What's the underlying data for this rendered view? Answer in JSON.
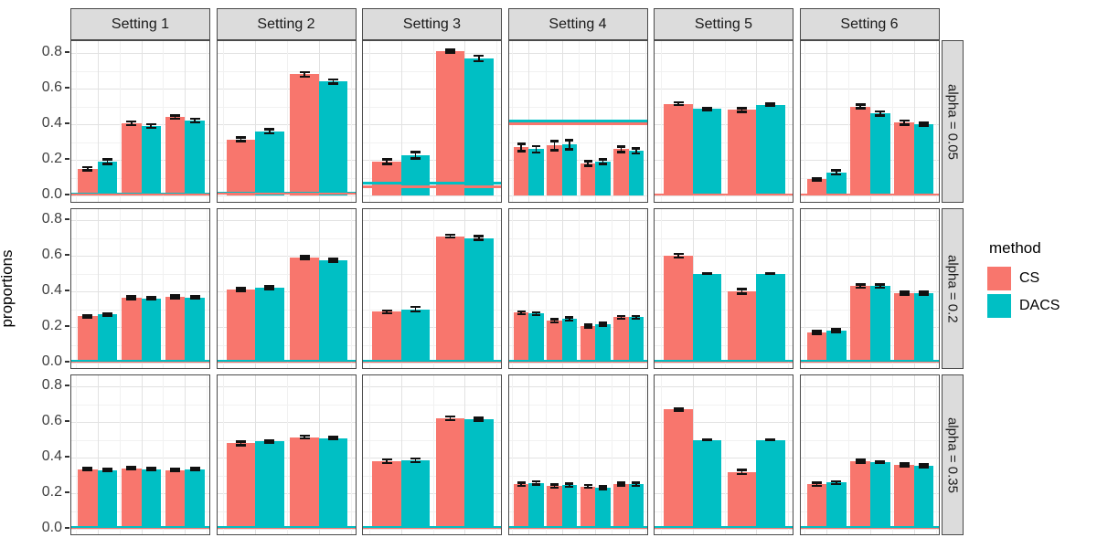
{
  "chart_data": {
    "type": "bar",
    "title": "",
    "ylabel": "proportions",
    "xlabel": "",
    "ylim": [
      0,
      0.867
    ],
    "y_ticks": [
      0.0,
      0.2,
      0.4,
      0.6,
      0.8
    ],
    "grid": "on",
    "legend": {
      "title": "method",
      "position": "right",
      "entries": [
        {
          "label": "CS",
          "color": "#F8766D"
        },
        {
          "label": "DACS",
          "color": "#00BFC4"
        }
      ]
    },
    "col_facets": [
      "Setting 1",
      "Setting 2",
      "Setting 3",
      "Setting 4",
      "Setting 5",
      "Setting 6"
    ],
    "row_facets": [
      "alpha = 0.05",
      "alpha = 0.2",
      "alpha = 0.35"
    ],
    "series_order": [
      "CS",
      "DACS"
    ],
    "panels": [
      {
        "row": "alpha = 0.05",
        "col": "Setting 1",
        "pairs": [
          [
            0.15,
            0.19
          ],
          [
            0.405,
            0.39
          ],
          [
            0.44,
            0.42
          ]
        ],
        "errs": [
          [
            0.008,
            0.012
          ],
          [
            0.01,
            0.01
          ],
          [
            0.01,
            0.01
          ]
        ],
        "ref_lines": [
          {
            "method": "DACS",
            "value": 0.008
          },
          {
            "method": "CS",
            "value": 0.006
          }
        ]
      },
      {
        "row": "alpha = 0.05",
        "col": "Setting 2",
        "pairs": [
          [
            0.315,
            0.36
          ],
          [
            0.68,
            0.64
          ]
        ],
        "errs": [
          [
            0.01,
            0.012
          ],
          [
            0.012,
            0.012
          ]
        ],
        "ref_lines": [
          {
            "method": "DACS",
            "value": 0.012
          },
          {
            "method": "CS",
            "value": 0.01
          }
        ]
      },
      {
        "row": "alpha = 0.05",
        "col": "Setting 3",
        "pairs": [
          [
            0.19,
            0.225
          ],
          [
            0.81,
            0.77
          ]
        ],
        "errs": [
          [
            0.012,
            0.018
          ],
          [
            0.008,
            0.015
          ]
        ],
        "ref_lines": [
          {
            "method": "CS",
            "value": 0.05
          },
          {
            "method": "DACS",
            "value": 0.068
          }
        ]
      },
      {
        "row": "alpha = 0.05",
        "col": "Setting 4",
        "pairs": [
          [
            0.27,
            0.26
          ],
          [
            0.28,
            0.285
          ],
          [
            0.18,
            0.19
          ],
          [
            0.26,
            0.25
          ]
        ],
        "errs": [
          [
            0.02,
            0.018
          ],
          [
            0.025,
            0.025
          ],
          [
            0.013,
            0.013
          ],
          [
            0.015,
            0.015
          ]
        ],
        "ref_lines": [
          {
            "method": "CS",
            "value": 0.402
          },
          {
            "method": "DACS",
            "value": 0.418
          }
        ]
      },
      {
        "row": "alpha = 0.05",
        "col": "Setting 5",
        "pairs": [
          [
            0.515,
            0.485
          ],
          [
            0.48,
            0.51
          ]
        ],
        "errs": [
          [
            0.008,
            0.004
          ],
          [
            0.01,
            0.005
          ]
        ],
        "ref_lines": [
          {
            "method": "DACS",
            "value": 0.006
          },
          {
            "method": "CS",
            "value": 0.005
          }
        ]
      },
      {
        "row": "alpha = 0.05",
        "col": "Setting 6",
        "pairs": [
          [
            0.09,
            0.13
          ],
          [
            0.5,
            0.46
          ],
          [
            0.41,
            0.4
          ]
        ],
        "errs": [
          [
            0.006,
            0.012
          ],
          [
            0.01,
            0.012
          ],
          [
            0.012,
            0.008
          ]
        ],
        "ref_lines": [
          {
            "method": "DACS",
            "value": 0.006
          },
          {
            "method": "CS",
            "value": 0.005
          }
        ]
      },
      {
        "row": "alpha = 0.2",
        "col": "Setting 1",
        "pairs": [
          [
            0.26,
            0.27
          ],
          [
            0.365,
            0.36
          ],
          [
            0.37,
            0.365
          ]
        ],
        "errs": [
          [
            0.006,
            0.006
          ],
          [
            0.008,
            0.006
          ],
          [
            0.008,
            0.006
          ]
        ],
        "ref_lines": [
          {
            "method": "CS",
            "value": 0.006
          },
          {
            "method": "DACS",
            "value": 0.01
          }
        ]
      },
      {
        "row": "alpha = 0.2",
        "col": "Setting 2",
        "pairs": [
          [
            0.41,
            0.42
          ],
          [
            0.59,
            0.575
          ]
        ],
        "errs": [
          [
            0.008,
            0.008
          ],
          [
            0.008,
            0.008
          ]
        ],
        "ref_lines": [
          {
            "method": "CS",
            "value": 0.006
          },
          {
            "method": "DACS",
            "value": 0.01
          }
        ]
      },
      {
        "row": "alpha = 0.2",
        "col": "Setting 3",
        "pairs": [
          [
            0.285,
            0.3
          ],
          [
            0.71,
            0.7
          ]
        ],
        "errs": [
          [
            0.008,
            0.012
          ],
          [
            0.008,
            0.01
          ]
        ],
        "ref_lines": [
          {
            "method": "CS",
            "value": 0.006
          },
          {
            "method": "DACS",
            "value": 0.01
          }
        ]
      },
      {
        "row": "alpha = 0.2",
        "col": "Setting 4",
        "pairs": [
          [
            0.28,
            0.275
          ],
          [
            0.235,
            0.245
          ],
          [
            0.205,
            0.215
          ],
          [
            0.255,
            0.255
          ]
        ],
        "errs": [
          [
            0.008,
            0.008
          ],
          [
            0.008,
            0.008
          ],
          [
            0.008,
            0.008
          ],
          [
            0.008,
            0.008
          ]
        ],
        "ref_lines": [
          {
            "method": "CS",
            "value": 0.006
          },
          {
            "method": "DACS",
            "value": 0.01
          }
        ]
      },
      {
        "row": "alpha = 0.2",
        "col": "Setting 5",
        "pairs": [
          [
            0.6,
            0.5
          ],
          [
            0.4,
            0.5
          ]
        ],
        "errs": [
          [
            0.01,
            0.002
          ],
          [
            0.012,
            0.002
          ]
        ],
        "ref_lines": [
          {
            "method": "CS",
            "value": 0.006
          },
          {
            "method": "DACS",
            "value": 0.01
          }
        ]
      },
      {
        "row": "alpha = 0.2",
        "col": "Setting 6",
        "pairs": [
          [
            0.17,
            0.18
          ],
          [
            0.43,
            0.43
          ],
          [
            0.39,
            0.39
          ]
        ],
        "errs": [
          [
            0.008,
            0.008
          ],
          [
            0.01,
            0.01
          ],
          [
            0.008,
            0.008
          ]
        ],
        "ref_lines": [
          {
            "method": "CS",
            "value": 0.006
          },
          {
            "method": "DACS",
            "value": 0.01
          }
        ]
      },
      {
        "row": "alpha = 0.35",
        "col": "Setting 1",
        "pairs": [
          [
            0.335,
            0.33
          ],
          [
            0.34,
            0.335
          ],
          [
            0.33,
            0.335
          ]
        ],
        "errs": [
          [
            0.006,
            0.006
          ],
          [
            0.006,
            0.006
          ],
          [
            0.006,
            0.006
          ]
        ],
        "ref_lines": [
          {
            "method": "CS",
            "value": 0.006
          },
          {
            "method": "DACS",
            "value": 0.01
          }
        ]
      },
      {
        "row": "alpha = 0.35",
        "col": "Setting 2",
        "pairs": [
          [
            0.48,
            0.49
          ],
          [
            0.515,
            0.51
          ]
        ],
        "errs": [
          [
            0.01,
            0.006
          ],
          [
            0.008,
            0.006
          ]
        ],
        "ref_lines": [
          {
            "method": "CS",
            "value": 0.006
          },
          {
            "method": "DACS",
            "value": 0.01
          }
        ]
      },
      {
        "row": "alpha = 0.35",
        "col": "Setting 3",
        "pairs": [
          [
            0.38,
            0.385
          ],
          [
            0.62,
            0.615
          ]
        ],
        "errs": [
          [
            0.01,
            0.01
          ],
          [
            0.01,
            0.008
          ]
        ],
        "ref_lines": [
          {
            "method": "CS",
            "value": 0.006
          },
          {
            "method": "DACS",
            "value": 0.01
          }
        ]
      },
      {
        "row": "alpha = 0.35",
        "col": "Setting 4",
        "pairs": [
          [
            0.25,
            0.258
          ],
          [
            0.24,
            0.245
          ],
          [
            0.238,
            0.232
          ],
          [
            0.252,
            0.25
          ]
        ],
        "errs": [
          [
            0.008,
            0.008
          ],
          [
            0.008,
            0.008
          ],
          [
            0.008,
            0.008
          ],
          [
            0.008,
            0.008
          ]
        ],
        "ref_lines": [
          {
            "method": "CS",
            "value": 0.006
          },
          {
            "method": "DACS",
            "value": 0.01
          }
        ]
      },
      {
        "row": "alpha = 0.35",
        "col": "Setting 5",
        "pairs": [
          [
            0.67,
            0.5
          ],
          [
            0.32,
            0.5
          ]
        ],
        "errs": [
          [
            0.006,
            0.002
          ],
          [
            0.012,
            0.002
          ]
        ],
        "ref_lines": [
          {
            "method": "CS",
            "value": 0.006
          },
          {
            "method": "DACS",
            "value": 0.01
          }
        ]
      },
      {
        "row": "alpha = 0.35",
        "col": "Setting 6",
        "pairs": [
          [
            0.25,
            0.26
          ],
          [
            0.38,
            0.375
          ],
          [
            0.36,
            0.355
          ]
        ],
        "errs": [
          [
            0.008,
            0.008
          ],
          [
            0.008,
            0.006
          ],
          [
            0.008,
            0.008
          ]
        ],
        "ref_lines": [
          {
            "method": "CS",
            "value": 0.006
          },
          {
            "method": "DACS",
            "value": 0.01
          }
        ]
      }
    ]
  }
}
